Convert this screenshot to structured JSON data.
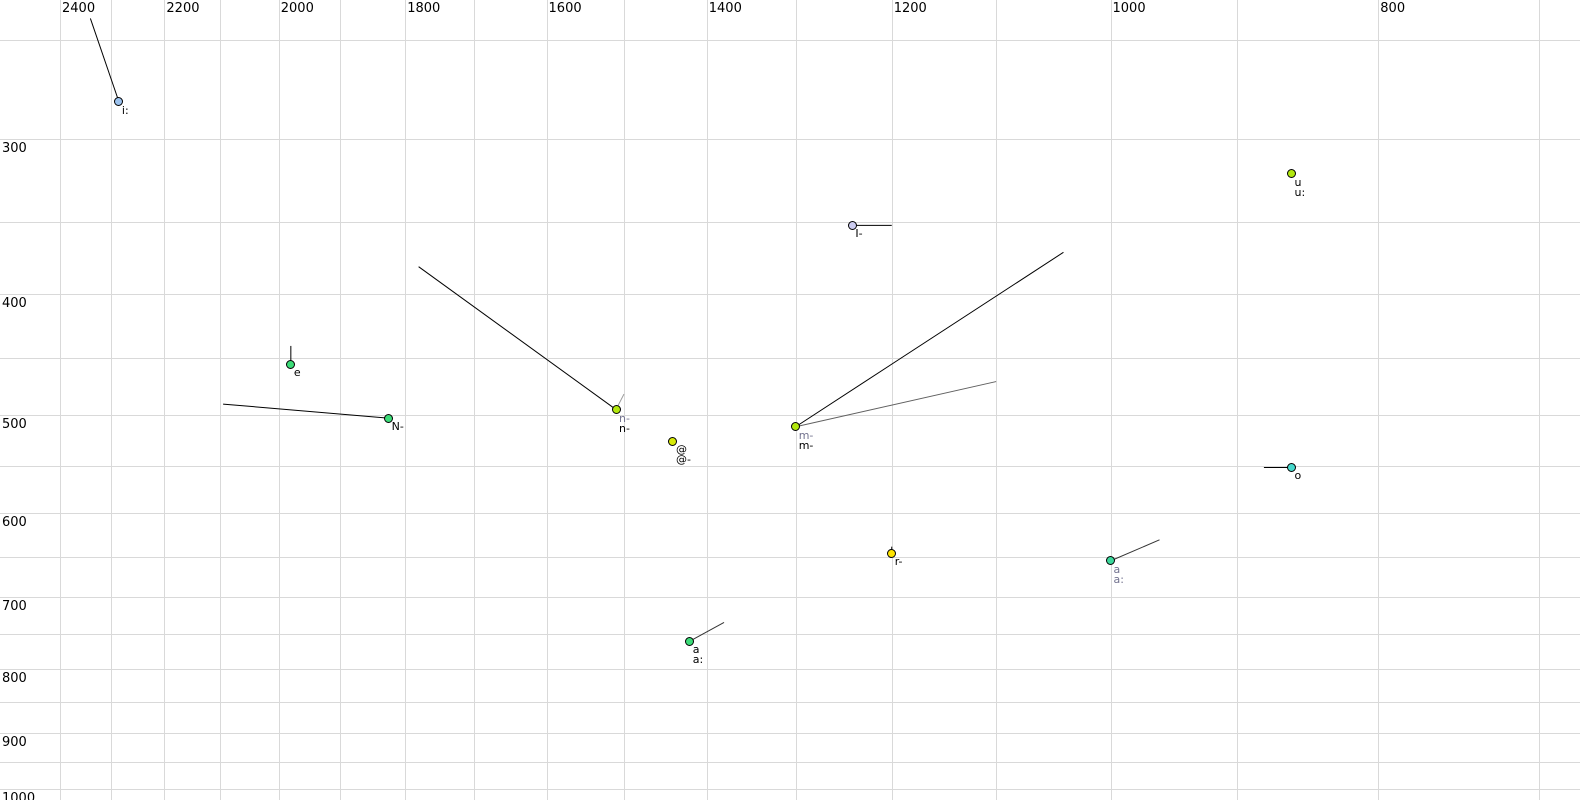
{
  "chart_data": {
    "type": "scatter",
    "title": "",
    "description": "Vowel formant chart: F2 (Hz) on reversed logarithmic top axis, F1 (Hz) on logarithmic left axis",
    "x_axis": {
      "unit": "Hz",
      "orientation": "top",
      "reversed": true,
      "scale": "log",
      "range": [
        2400,
        700
      ],
      "tick_labels": [
        "2400",
        "2200",
        "2000",
        "1800",
        "1600",
        "1400",
        "1200",
        "1000",
        "800"
      ],
      "tick_values": [
        2400,
        2200,
        2000,
        1800,
        1600,
        1400,
        1200,
        1000,
        800
      ],
      "gridline_values": [
        2400,
        2300,
        2200,
        2100,
        2000,
        1900,
        1800,
        1700,
        1600,
        1500,
        1400,
        1300,
        1200,
        1100,
        1000,
        900,
        800,
        700
      ],
      "grid_on": true
    },
    "y_axis": {
      "unit": "Hz",
      "orientation": "left",
      "scale": "log",
      "range": [
        250,
        1050
      ],
      "tick_labels": [
        "300",
        "400",
        "500",
        "600",
        "700",
        "800",
        "900",
        "1000"
      ],
      "tick_values": [
        300,
        400,
        500,
        600,
        700,
        800,
        900,
        1000
      ],
      "gridline_values": [
        250,
        300,
        350,
        400,
        450,
        500,
        550,
        600,
        650,
        700,
        750,
        800,
        850,
        900,
        950,
        1000
      ],
      "grid_on": true
    },
    "colors": {
      "gridline": "#d9d9d9",
      "axis_text": "#000000",
      "gray_label": "#73738f",
      "black_label": "#000000"
    },
    "points": [
      {
        "name": "i:",
        "f2": 2285,
        "f1": 280,
        "fill": "#9cc2ee",
        "labels": [
          {
            "text": "i:",
            "color": "#000000"
          }
        ],
        "tails": [
          {
            "f2": 2340,
            "f1": 240,
            "color": "#000000"
          }
        ]
      },
      {
        "name": "u:",
        "f2": 860,
        "f1": 320,
        "fill": "#b2e80e",
        "labels": [
          {
            "text": "u",
            "color": "#000000"
          },
          {
            "text": "u:",
            "color": "#000000"
          }
        ],
        "tails": []
      },
      {
        "name": "I-",
        "f2": 1240,
        "f1": 352,
        "fill": "#ccccf0",
        "labels": [
          {
            "text": "I-",
            "color": "#000000"
          }
        ],
        "tails": [
          {
            "f2": 1200,
            "f1": 352,
            "color": "#000000"
          }
        ]
      },
      {
        "name": "e",
        "f2": 1980,
        "f1": 455,
        "fill": "#3cdc78",
        "labels": [
          {
            "text": "e",
            "color": "#000000"
          }
        ],
        "tails": [
          {
            "f2": 1980,
            "f1": 440,
            "color": "#000000"
          }
        ]
      },
      {
        "name": "N-",
        "f2": 1825,
        "f1": 503,
        "fill": "#3cdc78",
        "labels": [
          {
            "text": "N-",
            "color": "#000000"
          }
        ],
        "tails": [
          {
            "f2": 2095,
            "f1": 490,
            "color": "#000000"
          }
        ]
      },
      {
        "name": "n-",
        "f2": 1510,
        "f1": 495,
        "fill": "#b2e80e",
        "labels": [
          {
            "text": "n-",
            "color": "#73738f"
          },
          {
            "text": "n-",
            "color": "#000000"
          }
        ],
        "tails": [
          {
            "f2": 1780,
            "f1": 380,
            "color": "#000000"
          },
          {
            "f2": 1500,
            "f1": 481,
            "color": "#9a9a9a"
          }
        ]
      },
      {
        "name": "@",
        "f2": 1440,
        "f1": 525,
        "fill": "#d6ea08",
        "labels": [
          {
            "text": "@",
            "color": "#000000"
          },
          {
            "text": "@-",
            "color": "#000000"
          }
        ],
        "tails": []
      },
      {
        "name": "m-",
        "f2": 1300,
        "f1": 511,
        "fill": "#b2e80e",
        "labels": [
          {
            "text": "m-",
            "color": "#73738f"
          },
          {
            "text": "m-",
            "color": "#000000"
          }
        ],
        "tails": [
          {
            "f2": 1040,
            "f1": 370,
            "color": "#000000"
          },
          {
            "f2": 1100,
            "f1": 470,
            "color": "#606060"
          }
        ]
      },
      {
        "name": "o",
        "f2": 860,
        "f1": 551,
        "fill": "#45d8cc",
        "labels": [
          {
            "text": "o",
            "color": "#000000"
          }
        ],
        "tails": [
          {
            "f2": 880,
            "f1": 551,
            "color": "#000000"
          }
        ]
      },
      {
        "name": "r-",
        "f2": 1200,
        "f1": 646,
        "fill": "#ffe400",
        "labels": [
          {
            "text": "r-",
            "color": "#000000"
          }
        ],
        "tails": [
          {
            "f2": 1200,
            "f1": 638,
            "color": "#000000"
          }
        ]
      },
      {
        "name": "a:-secondary",
        "f2": 1000,
        "f1": 655,
        "fill": "#3cd89c",
        "labels": [
          {
            "text": "a",
            "color": "#73738f"
          },
          {
            "text": "a:",
            "color": "#73738f"
          }
        ],
        "tails": [
          {
            "f2": 960,
            "f1": 630,
            "color": "#333333"
          }
        ]
      },
      {
        "name": "a:",
        "f2": 1420,
        "f1": 760,
        "fill": "#3cdc78",
        "labels": [
          {
            "text": "a",
            "color": "#000000"
          },
          {
            "text": "a:",
            "color": "#000000"
          }
        ],
        "tails": [
          {
            "f2": 1380,
            "f1": 734,
            "color": "#333333"
          }
        ]
      }
    ]
  }
}
